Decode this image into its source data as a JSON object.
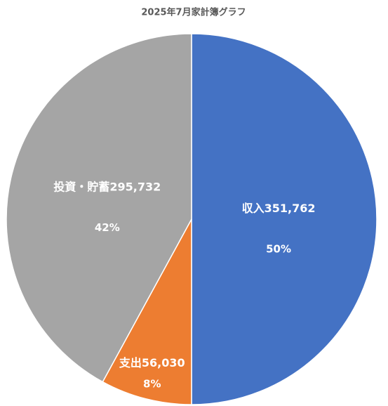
{
  "chart_data": {
    "type": "pie",
    "title": "2025年7月家計簿グラフ",
    "categories": [
      "収入",
      "支出",
      "投資・貯蓄"
    ],
    "values": [
      351762,
      56030,
      295732
    ],
    "value_labels": [
      "351,762",
      "56,030",
      "295,732"
    ],
    "percents": [
      50,
      8,
      42
    ],
    "percent_labels": [
      "50%",
      "8%",
      "42%"
    ],
    "colors": [
      "#4472c4",
      "#ed7d31",
      "#a5a5a5"
    ]
  }
}
